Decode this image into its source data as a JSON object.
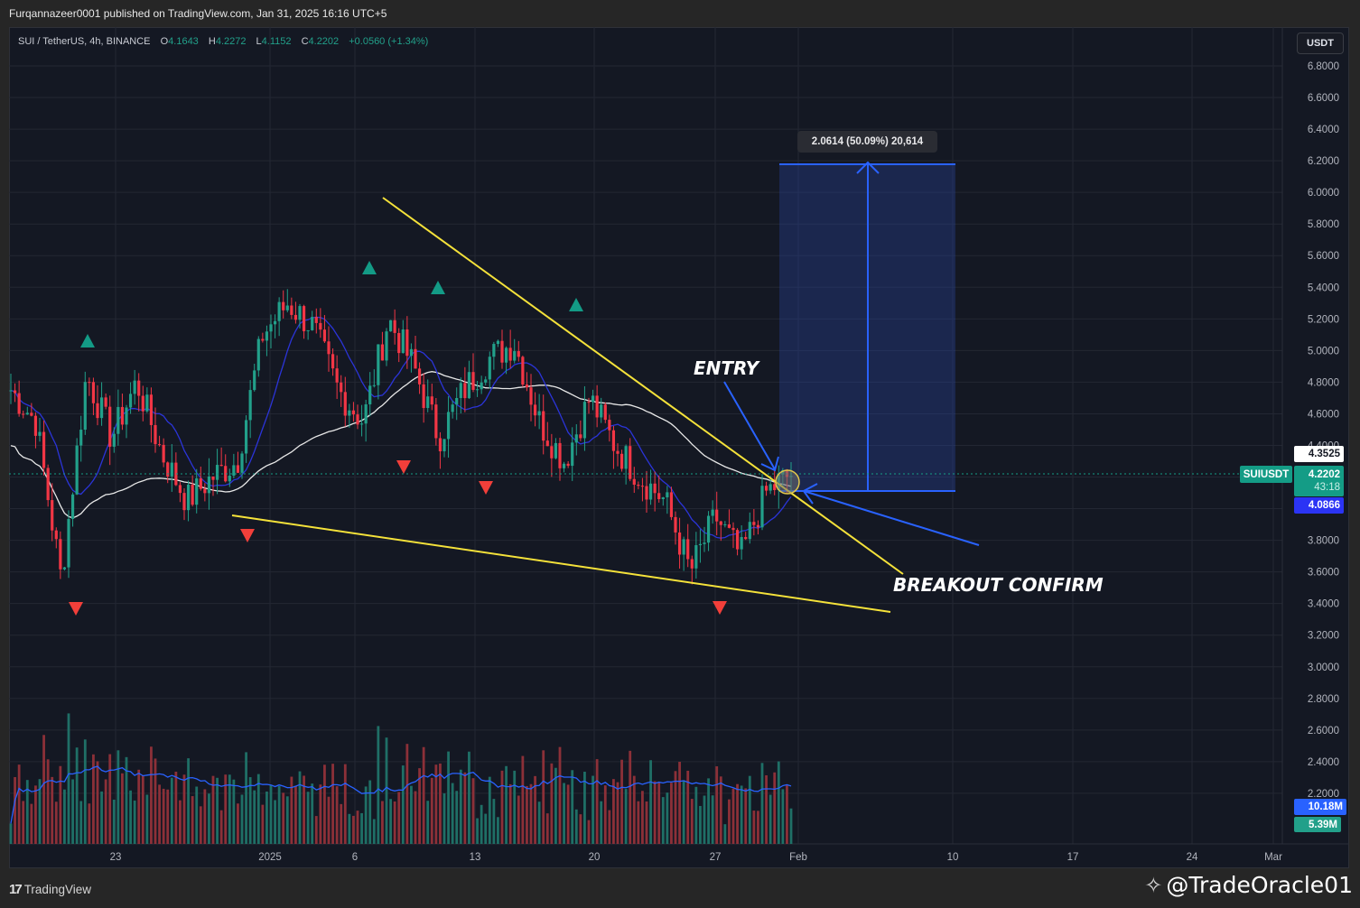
{
  "header": {
    "published": "Furqannazeer0001 published on TradingView.com, Jan 31, 2025 16:16 UTC+5"
  },
  "legend": {
    "symbol": "SUI / TetherUS, 4h, BINANCE",
    "open_label": "O",
    "open": "4.1643",
    "high_label": "H",
    "high": "4.2272",
    "low_label": "L",
    "low": "4.1152",
    "close_label": "C",
    "close": "4.2202",
    "change": "+0.0560 (+1.34%)"
  },
  "price_axis": {
    "currency_button": "USDT",
    "ticks": [
      "6.8000",
      "6.6000",
      "6.4000",
      "6.2000",
      "6.0000",
      "5.8000",
      "5.6000",
      "5.4000",
      "5.2000",
      "5.0000",
      "4.8000",
      "4.6000",
      "4.4000",
      "3.8000",
      "3.6000",
      "3.4000",
      "3.2000",
      "3.0000",
      "2.8000",
      "2.6000",
      "2.4000",
      "2.2000"
    ],
    "tags": {
      "ma200_value": "4.3525",
      "ticker": "SUIUSDT",
      "last_price": "4.2202",
      "countdown": "43:18",
      "ma50_value": "4.0866",
      "volume_ma": "10.18M",
      "volume": "5.39M"
    }
  },
  "time_axis": {
    "ticks": [
      "23",
      "2025",
      "6",
      "13",
      "20",
      "27",
      "Feb",
      "10",
      "17",
      "24",
      "Mar"
    ]
  },
  "annotations": {
    "entry": "ENTRY",
    "breakout": "BREAKOUT CONFIRM",
    "measure": "2.0614 (50.09%) 20,614"
  },
  "footer": {
    "brand": "TradingView",
    "watermark": "@TradeOracle01"
  },
  "colors": {
    "background": "#141823",
    "up": "#22a08a",
    "down": "#f23645",
    "vol_up": "#1f6f66",
    "vol_down": "#8c3038",
    "ma50": "#2b34d8",
    "ma200": "#e8e8e8",
    "trendline": "#f5e23a",
    "arrow": "#2962ff",
    "long_zone": "rgba(41,70,160,0.35)"
  },
  "chart_data": {
    "type": "candlestick",
    "title": "SUI / TetherUS, 4h, BINANCE",
    "symbol": "SUIUSDT",
    "timeframe": "4h",
    "xlabel": "",
    "ylabel": "USDT",
    "ylim": [
      2.1,
      6.9
    ],
    "x_ticks": [
      "23",
      "2025",
      "6",
      "13",
      "20",
      "27",
      "Feb",
      "10",
      "17",
      "24",
      "Mar"
    ],
    "y_ticks": [
      2.2,
      2.4,
      2.6,
      2.8,
      3.0,
      3.2,
      3.4,
      3.6,
      3.8,
      4.0,
      4.2,
      4.4,
      4.6,
      4.8,
      5.0,
      5.2,
      5.4,
      5.6,
      5.8,
      6.0,
      6.2,
      6.4,
      6.6,
      6.8
    ],
    "last_ohlc": {
      "open": 4.1643,
      "high": 4.2272,
      "low": 4.1152,
      "close": 4.2202,
      "change": 0.056,
      "change_pct": 1.34
    },
    "approx_close_path": [
      {
        "date": "Dec 20",
        "price": 4.75
      },
      {
        "date": "Dec 21",
        "price": 4.55
      },
      {
        "date": "Dec 22",
        "price": 3.55
      },
      {
        "date": "Dec 22b",
        "price": 4.85
      },
      {
        "date": "Dec 24",
        "price": 4.45
      },
      {
        "date": "Dec 25",
        "price": 4.8
      },
      {
        "date": "Dec 27",
        "price": 4.35
      },
      {
        "date": "Dec 29",
        "price": 4.05
      },
      {
        "date": "Dec 31",
        "price": 4.2
      },
      {
        "date": "Jan 2",
        "price": 4.3
      },
      {
        "date": "Jan 4",
        "price": 5.1
      },
      {
        "date": "Jan 5",
        "price": 5.3
      },
      {
        "date": "Jan 7",
        "price": 5.15
      },
      {
        "date": "Jan 8",
        "price": 4.75
      },
      {
        "date": "Jan 9",
        "price": 4.55
      },
      {
        "date": "Jan 11",
        "price": 5.2
      },
      {
        "date": "Jan 12",
        "price": 4.9
      },
      {
        "date": "Jan 14",
        "price": 4.45
      },
      {
        "date": "Jan 16",
        "price": 4.75
      },
      {
        "date": "Jan 18",
        "price": 4.95
      },
      {
        "date": "Jan 19",
        "price": 5.05
      },
      {
        "date": "Jan 20",
        "price": 4.55
      },
      {
        "date": "Jan 21",
        "price": 4.3
      },
      {
        "date": "Jan 22",
        "price": 4.7
      },
      {
        "date": "Jan 24",
        "price": 4.4
      },
      {
        "date": "Jan 25",
        "price": 4.2
      },
      {
        "date": "Jan 26",
        "price": 4.05
      },
      {
        "date": "Jan 27",
        "price": 3.6
      },
      {
        "date": "Jan 28",
        "price": 3.95
      },
      {
        "date": "Jan 29",
        "price": 3.7
      },
      {
        "date": "Jan 30",
        "price": 4.1
      },
      {
        "date": "Jan 31",
        "price": 4.22
      }
    ],
    "indicators": [
      {
        "name": "MA 50",
        "color": "#2b34d8",
        "last": 4.0866
      },
      {
        "name": "MA 200",
        "color": "#e8e8e8",
        "last": 4.3525
      },
      {
        "name": "Volume MA",
        "color": "#2962ff",
        "last": "10.18M"
      },
      {
        "name": "Volume",
        "last": "5.39M"
      }
    ],
    "pivot_highs": [
      {
        "date": "Dec 22",
        "price": 4.92
      },
      {
        "date": "Jan 6",
        "price": 5.34
      },
      {
        "date": "Jan 11",
        "price": 5.22
      },
      {
        "date": "Jan 19",
        "price": 5.12
      }
    ],
    "pivot_lows": [
      {
        "date": "Dec 22",
        "price": 3.5
      },
      {
        "date": "Dec 30",
        "price": 3.98
      },
      {
        "date": "Jan 8",
        "price": 4.49
      },
      {
        "date": "Jan 13",
        "price": 4.4
      },
      {
        "date": "Jan 27",
        "price": 3.55
      }
    ],
    "drawings": {
      "falling_wedge_upper": {
        "from": {
          "date": "Jan 8",
          "price": 5.95
        },
        "to": {
          "date": "Feb 4",
          "price": 3.6
        }
      },
      "falling_wedge_lower": {
        "from": {
          "date": "Dec 30",
          "price": 3.94
        },
        "to": {
          "date": "Feb 4",
          "price": 3.35
        }
      },
      "long_position": {
        "entry": 4.115,
        "target": 6.177,
        "gain": 2.0614,
        "gain_pct": 50.09,
        "ticks": "20,614"
      }
    },
    "grid": true,
    "legend_position": "top-left"
  }
}
